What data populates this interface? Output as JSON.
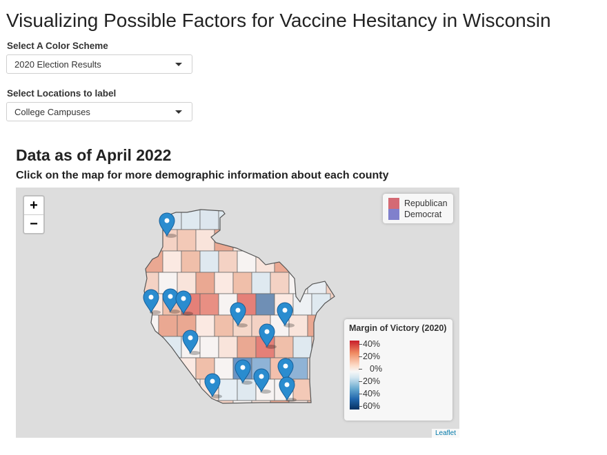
{
  "page": {
    "title": "Visualizing Possible Factors for Vaccine Hesitancy in Wisconsin"
  },
  "controls": {
    "color_scheme": {
      "label": "Select A Color Scheme",
      "value": "2020 Election Results"
    },
    "locations": {
      "label": "Select Locations to label",
      "value": "College Campuses"
    }
  },
  "map": {
    "heading": "Data as of April 2022",
    "subheading": "Click on the map for more demographic information about each county",
    "zoom_in": "+",
    "zoom_out": "−",
    "attribution": "Leaflet",
    "party_legend": [
      {
        "label": "Republican",
        "color": "#d46a74"
      },
      {
        "label": "Democrat",
        "color": "#8080cc"
      }
    ],
    "margin_legend": {
      "title": "Margin of Victory (2020)",
      "labels": [
        "40%",
        "20%",
        "0%",
        "20%",
        "40%",
        "60%"
      ]
    },
    "marker_icon": "map-pin-icon",
    "marker_count": 14
  }
}
